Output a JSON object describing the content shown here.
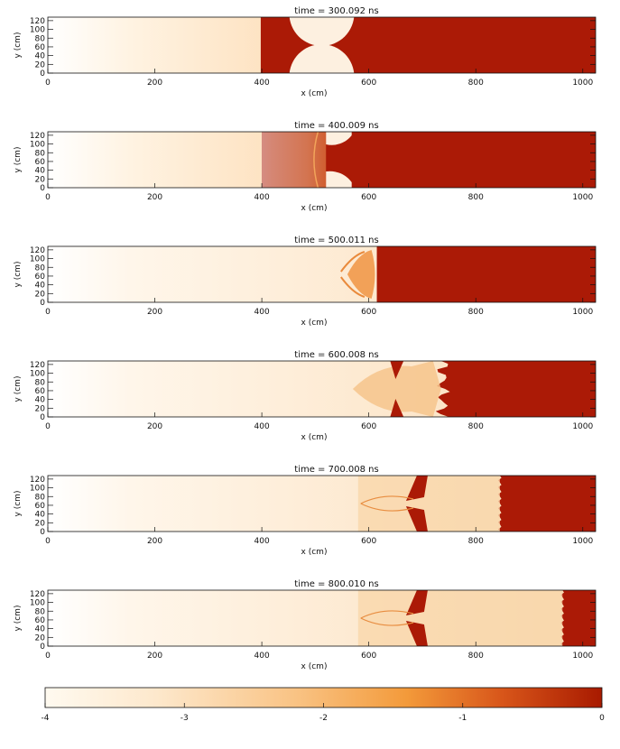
{
  "figure": {
    "xlabel": "x (cm)",
    "ylabel": "y (cm)",
    "x_range": [
      0,
      1024
    ],
    "y_range": [
      0,
      128
    ],
    "xticks": [
      "0",
      "200",
      "400",
      "600",
      "800",
      "1000"
    ],
    "yticks": [
      "0",
      "20",
      "40",
      "60",
      "80",
      "100",
      "120"
    ]
  },
  "chart_data": [
    {
      "type": "heatmap",
      "title": "time =    300.092  ns",
      "time_ns": 300.092,
      "shock_x_cm": 398,
      "dense_front_x_cm": 568,
      "features": "two semicircular clumps at x=455-570"
    },
    {
      "type": "heatmap",
      "title": "time =    400.009  ns",
      "time_ns": 400.009,
      "shock_x_cm": 400,
      "dense_front_x_cm": 568,
      "features": "clump halves near x=520-570"
    },
    {
      "type": "heatmap",
      "title": "time =    500.011  ns",
      "time_ns": 500.011,
      "shock_x_cm": 600,
      "dense_front_x_cm": 615,
      "features": "mushroom-shaped clump at x=545-615"
    },
    {
      "type": "heatmap",
      "title": "time =    600.008  ns",
      "time_ns": 600.008,
      "shock_x_cm": 600,
      "dense_front_x_cm": 735,
      "features": "Rayleigh-Taylor fingers x=570-735"
    },
    {
      "type": "heatmap",
      "title": "time =    700.008  ns",
      "time_ns": 700.008,
      "shock_x_cm": 700,
      "dense_front_x_cm": 845,
      "features": "turbulent mixing x=580-845"
    },
    {
      "type": "heatmap",
      "title": "time =    800.010  ns",
      "time_ns": 800.01,
      "shock_x_cm": 700,
      "dense_front_x_cm": 962,
      "features": "turbulent mixing x=580-962"
    }
  ],
  "colorbar": {
    "range": [
      -4,
      0
    ],
    "ticks": [
      "-4",
      "-3",
      "-2",
      "-1",
      "0"
    ],
    "colors": [
      "#fffaf0",
      "#fde2c0",
      "#f7b36e",
      "#f08a2a",
      "#d4550f",
      "#a81a00"
    ]
  },
  "colors": {
    "dense": "#ab1a06",
    "light": "#fef8ee",
    "mid": "#f6c48c"
  }
}
